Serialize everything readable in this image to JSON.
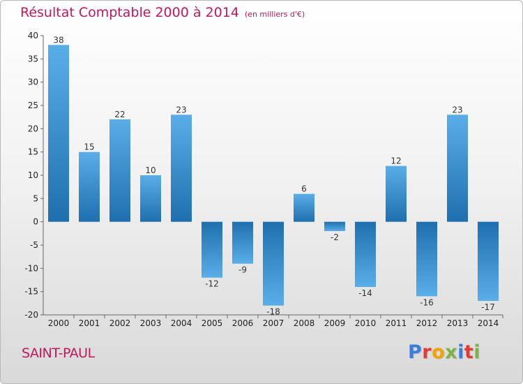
{
  "header": {
    "title": "Résultat Comptable 2000 à 2014",
    "unit": "(en milliers d'€)"
  },
  "location": "SAINT-PAUL",
  "logo": {
    "text": "Proxiti",
    "letters": [
      "P",
      "r",
      "o",
      "x",
      "i",
      "t",
      "i"
    ],
    "colors": [
      "#3b7dd8",
      "#e53935",
      "#f4a300",
      "#7cb342",
      "#3b7dd8",
      "#e53935",
      "#7cb342"
    ]
  },
  "colors": {
    "title": "#c2185b",
    "bar_light": "#5aaee8",
    "bar_dark": "#1f6fae"
  },
  "chart_data": {
    "type": "bar",
    "categories": [
      "2000",
      "2001",
      "2002",
      "2003",
      "2004",
      "2005",
      "2006",
      "2007",
      "2008",
      "2009",
      "2010",
      "2011",
      "2012",
      "2013",
      "2014"
    ],
    "values": [
      38,
      15,
      22,
      10,
      23,
      -12,
      -9,
      -18,
      6,
      -2,
      -14,
      12,
      -16,
      23,
      -17
    ],
    "value_labels": [
      "38",
      "15",
      "22",
      "10",
      "23",
      "-12",
      "-9",
      "-18",
      "6",
      "-2",
      "-14",
      "12",
      "-16",
      "23",
      "-17"
    ],
    "title": "Résultat Comptable 2000 à 2014",
    "xlabel": "",
    "ylabel": "",
    "ylim": [
      -20,
      40
    ],
    "yticks": [
      40,
      35,
      30,
      25,
      20,
      15,
      10,
      5,
      0,
      -5,
      -10,
      -15,
      -20
    ],
    "grid": false
  }
}
